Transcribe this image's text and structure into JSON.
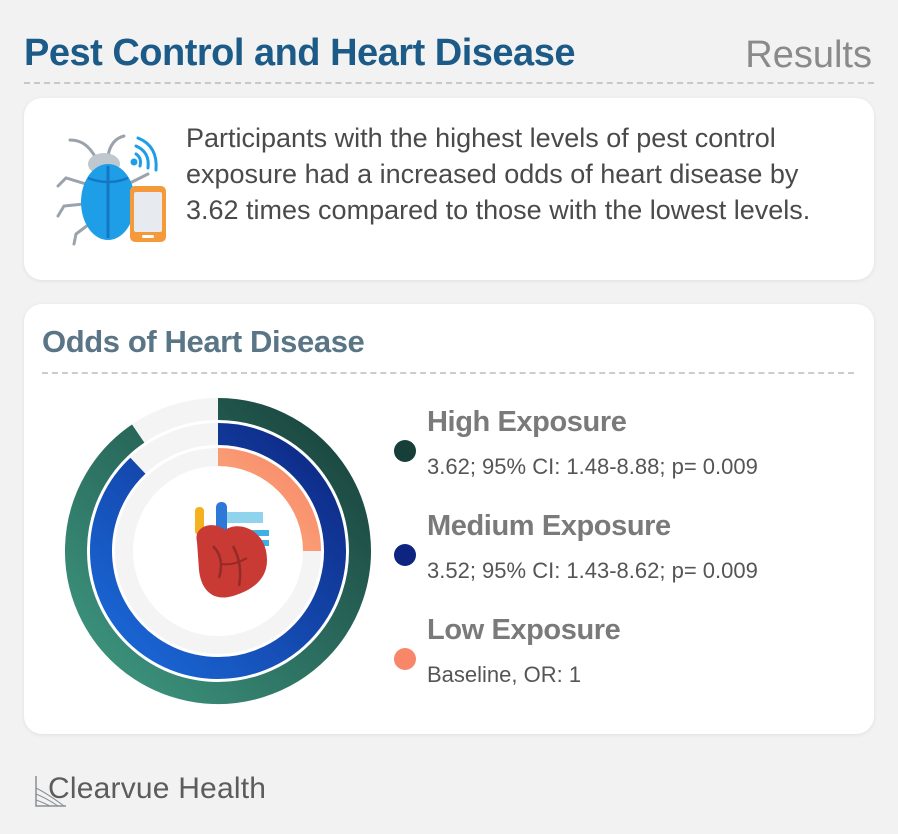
{
  "header": {
    "title": "Pest Control and Heart Disease",
    "section": "Results"
  },
  "finding": {
    "icon": "cockroach-phone-icon",
    "text": "Participants with the highest levels of pest control exposure had a increased odds of heart disease by 3.62 times compared to those with the lowest levels."
  },
  "chart": {
    "title": "Odds of Heart Disease",
    "center_icon": "heart-icon"
  },
  "chart_data": {
    "type": "radial-bar",
    "title": "Odds of Heart Disease",
    "series": [
      {
        "name": "High Exposure",
        "value": 3.62,
        "stat": "3.62; 95% CI: 1.48-8.88; p= 0.009",
        "color": "#173f3a",
        "gradient_end": "#3f9a82"
      },
      {
        "name": "Medium Exposure",
        "value": 3.52,
        "stat": "3.52; 95% CI: 1.43-8.62; p= 0.009",
        "color": "#0d2580",
        "gradient_end": "#1b6cdc"
      },
      {
        "name": "Low Exposure",
        "value": 1,
        "stat": "Baseline, OR: 1",
        "color": "#f8876a",
        "gradient_end": "#fbb07c"
      }
    ],
    "max": 4
  },
  "brand": {
    "name": "Clearvue Health",
    "icon": "clearvue-logo-icon"
  }
}
